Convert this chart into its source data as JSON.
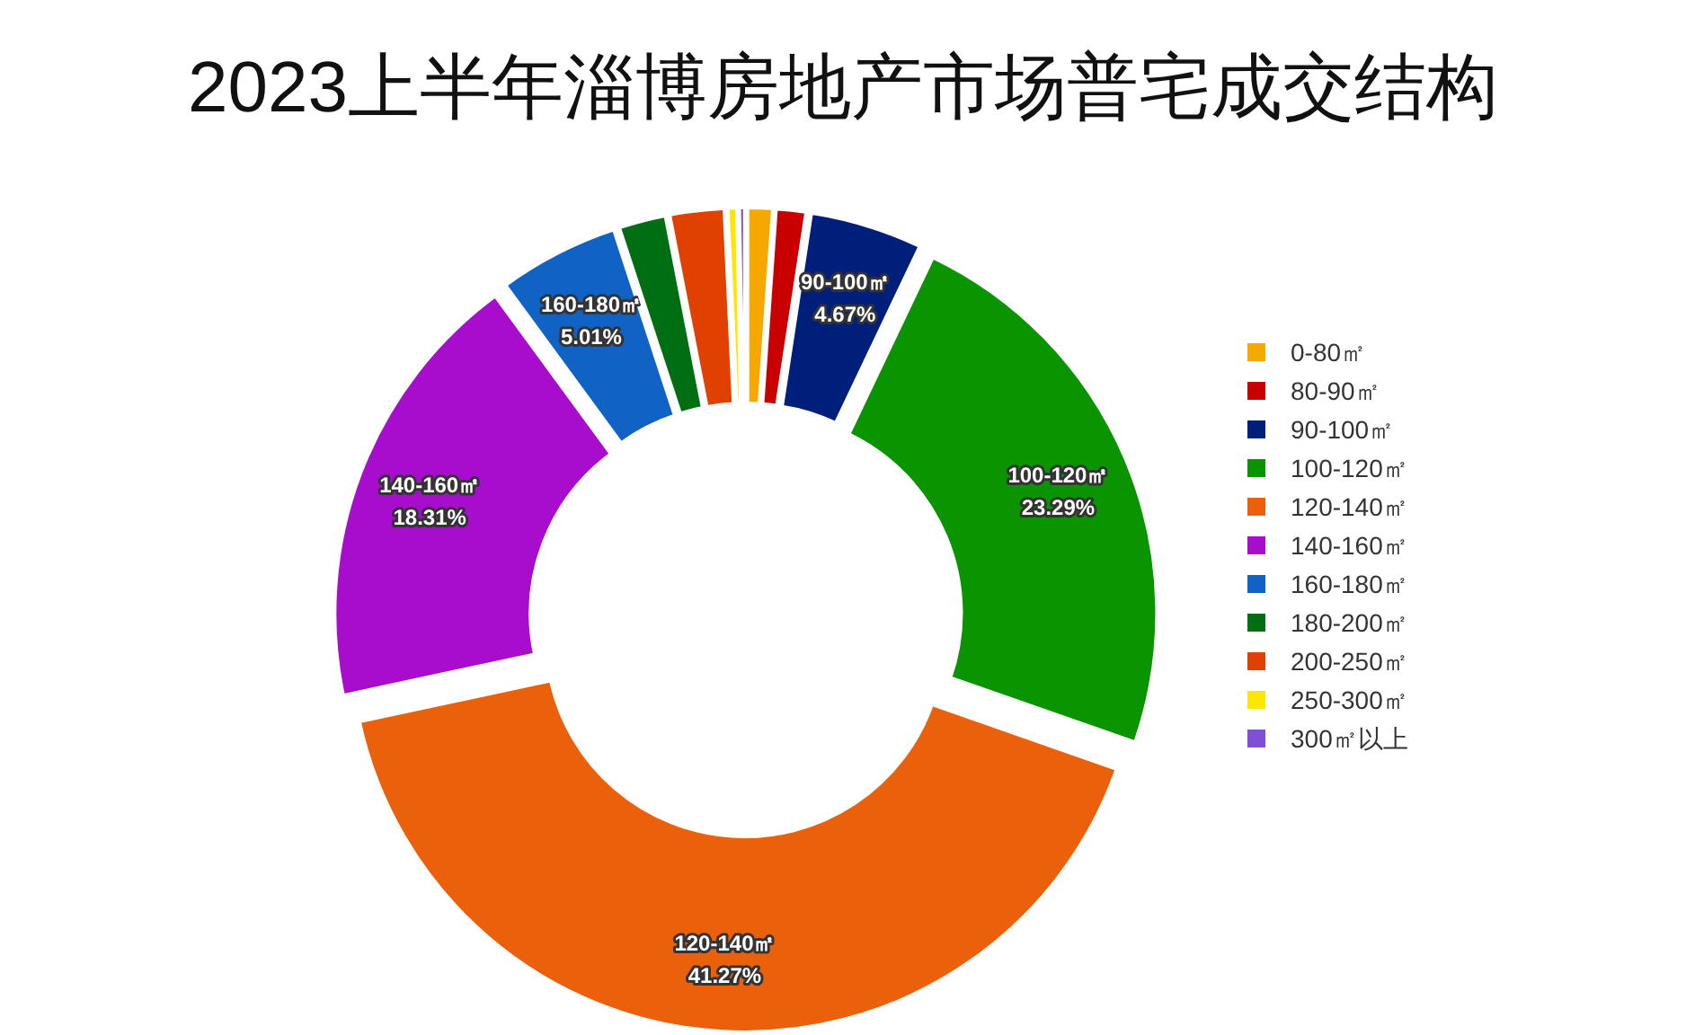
{
  "chart_data": {
    "type": "donut",
    "title": "2023上半年淄博房地产市场普宅成交结构",
    "categories": [
      "0-80㎡",
      "80-90㎡",
      "90-100㎡",
      "100-120㎡",
      "120-140㎡",
      "140-160㎡",
      "160-180㎡",
      "180-200㎡",
      "200-250㎡",
      "250-300㎡",
      "300㎡以上"
    ],
    "values": [
      1.1,
      1.3,
      4.67,
      23.29,
      41.27,
      18.31,
      5.01,
      2.0,
      2.3,
      0.45,
      0.3
    ],
    "colors": [
      "#f5a800",
      "#c80000",
      "#001f7a",
      "#0a9400",
      "#eb600a",
      "#a80ccc",
      "#1063c4",
      "#006e12",
      "#e04000",
      "#ffe600",
      "#7f4fd6"
    ],
    "value_labels": [
      null,
      null,
      "4.67%",
      "23.29%",
      "41.27%",
      "18.31%",
      "5.01%",
      null,
      null,
      null,
      null
    ],
    "legend": "right"
  }
}
